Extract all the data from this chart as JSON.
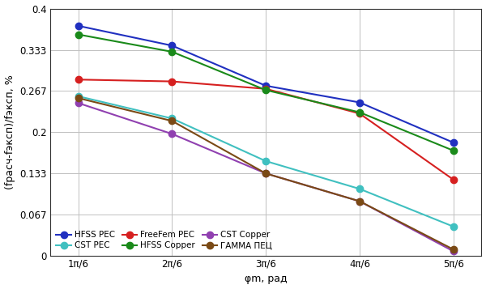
{
  "x_labels": [
    "1π/6",
    "2π/6",
    "3π/6",
    "4π/6",
    "5π/6"
  ],
  "x_values": [
    1,
    2,
    3,
    4,
    5
  ],
  "series_order": [
    "HFSS PEC",
    "CST PEC",
    "FreeFem PEC",
    "HFSS Copper",
    "CST Copper",
    "ГАММА ПЕЦ"
  ],
  "series": {
    "HFSS PEC": {
      "y": [
        0.372,
        0.34,
        0.275,
        0.248,
        0.183
      ],
      "color": "#2030c0",
      "marker": "o"
    },
    "CST PEC": {
      "y": [
        0.258,
        0.222,
        0.153,
        0.108,
        0.047
      ],
      "color": "#40c0c0",
      "marker": "o"
    },
    "FreeFem PEC": {
      "y": [
        0.285,
        0.282,
        0.27,
        0.23,
        0.123
      ],
      "color": "#d62020",
      "marker": "o"
    },
    "HFSS Copper": {
      "y": [
        0.358,
        0.33,
        0.268,
        0.232,
        0.17
      ],
      "color": "#1a8a1a",
      "marker": "o"
    },
    "CST Copper": {
      "y": [
        0.247,
        0.197,
        0.133,
        0.088,
        0.007
      ],
      "color": "#9040b0",
      "marker": "o"
    },
    "ГАММА ПЕЦ": {
      "y": [
        0.255,
        0.218,
        0.133,
        0.088,
        0.01
      ],
      "color": "#7a4a15",
      "marker": "o"
    }
  },
  "yticks": [
    0,
    0.067,
    0.133,
    0.2,
    0.267,
    0.333,
    0.4
  ],
  "ytick_labels": [
    "0",
    "0.067",
    "0.133",
    "0.2",
    "0.267",
    "0.333",
    "0.4"
  ],
  "ylabel": "(fрасч-fэксп)/fэксп, %",
  "xlabel": "φm, рад",
  "ylim": [
    0,
    0.4
  ],
  "figsize": [
    6.0,
    3.57
  ],
  "dpi": 100,
  "background_color": "#ffffff",
  "grid_color": "#c0c0c0",
  "marker_size": 6,
  "line_width": 1.5,
  "tick_fontsize": 8.5,
  "label_fontsize": 9,
  "legend_fontsize": 7.5
}
